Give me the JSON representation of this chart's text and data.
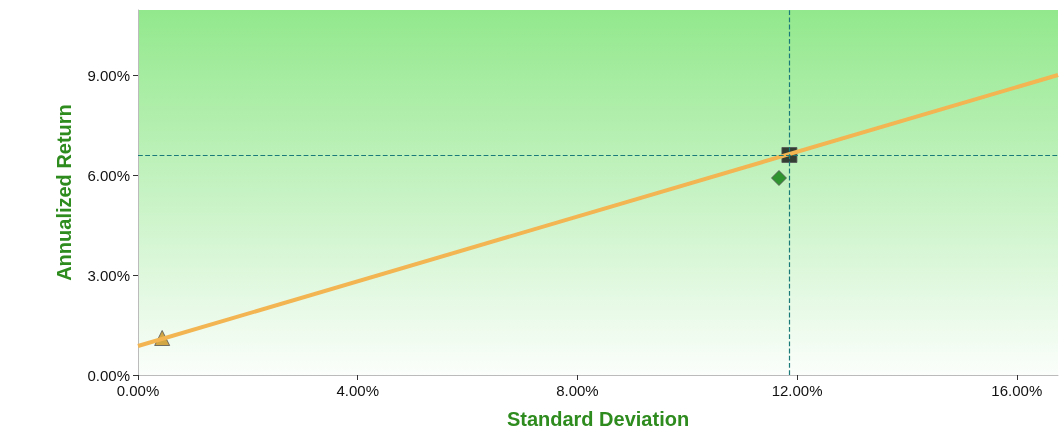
{
  "chart_data": {
    "type": "scatter",
    "xlabel": "Standard Deviation",
    "ylabel": "Annualized Return",
    "xlim": [
      0,
      16.75
    ],
    "ylim": [
      0,
      10.95
    ],
    "xticks": [
      {
        "value": 0,
        "label": "0.00%"
      },
      {
        "value": 4,
        "label": "4.00%"
      },
      {
        "value": 8,
        "label": "8.00%"
      },
      {
        "value": 12,
        "label": "12.00%"
      },
      {
        "value": 16,
        "label": "16.00%"
      }
    ],
    "yticks": [
      {
        "value": 0,
        "label": "0.00%"
      },
      {
        "value": 3,
        "label": "3.00%"
      },
      {
        "value": 6,
        "label": "6.00%"
      },
      {
        "value": 9,
        "label": "9.00%"
      }
    ],
    "grid": false,
    "ref_lines": [
      {
        "axis": "x",
        "value": 11.86,
        "color": "#1a7a7a",
        "line_style": "dashed"
      },
      {
        "axis": "y",
        "value": 6.6,
        "color": "#1a7a7a",
        "line_style": "dashed"
      }
    ],
    "series": [
      {
        "type": "line",
        "color": "#f2b552",
        "x": [
          0,
          16.75
        ],
        "values": [
          0.87,
          9.0
        ],
        "marker": "none",
        "line_style": "solid"
      },
      {
        "color": "#c8901a",
        "x": [
          0.44
        ],
        "values": [
          1.11
        ],
        "marker": "triangle"
      },
      {
        "color": "#0a7a0a",
        "x": [
          11.67
        ],
        "values": [
          5.91
        ],
        "marker": "diamond"
      },
      {
        "color": "#111111",
        "x": [
          11.86
        ],
        "values": [
          6.6
        ],
        "marker": "square"
      }
    ]
  }
}
